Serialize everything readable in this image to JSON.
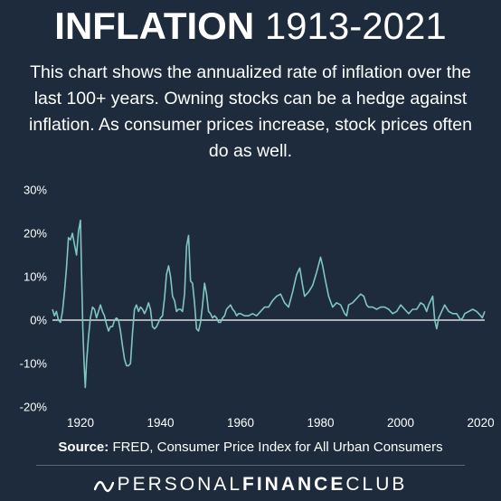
{
  "title": {
    "bold": "INFLATION",
    "light": "1913-2021"
  },
  "subtitle": "This chart shows the annualized rate of inflation over the last 100+ years. Owning stocks can be a hedge against inflation. As consumer prices increase, stock prices often do as well.",
  "source": {
    "label": "Source:",
    "text": "FRED, Consumer Price Index for All Urban Consumers"
  },
  "brand": {
    "part1": "PERSONAL",
    "part2": "FINANCE",
    "part3": "CLUB",
    "icon": "wave-logo-icon"
  },
  "colors": {
    "background": "#1e2b3c",
    "line": "#7fc7bf",
    "zero_line": "#ffffff",
    "text": "#ffffff"
  },
  "chart_data": {
    "type": "line",
    "title": "",
    "xlabel": "",
    "ylabel": "",
    "xlim": [
      1913,
      2021
    ],
    "ylim": [
      -20,
      30
    ],
    "x_ticks": [
      1920,
      1940,
      1960,
      1980,
      2000,
      2020
    ],
    "x_tick_labels": [
      "1920",
      "1940",
      "1960",
      "1980",
      "2000",
      "2020"
    ],
    "y_ticks": [
      30,
      20,
      10,
      0,
      -10,
      -20
    ],
    "y_tick_labels": [
      "30%",
      "20%",
      "10%",
      "0%",
      "-10%",
      "-20%"
    ],
    "grid": false,
    "zero_line": true,
    "series": [
      {
        "x": [
          1913.0,
          1913.5,
          1914.0,
          1914.5,
          1915.0,
          1915.5,
          1916.0,
          1916.5,
          1917.0,
          1917.5,
          1918.0,
          1918.5,
          1919.0,
          1919.5,
          1920.0,
          1920.3,
          1920.6,
          1920.9,
          1921.2,
          1921.5,
          1922.0,
          1922.5,
          1923.0,
          1923.5,
          1924.0,
          1924.5,
          1925.0,
          1925.5,
          1926.0,
          1926.5,
          1927.0,
          1927.5,
          1928.0,
          1928.5,
          1929.0,
          1929.5,
          1930.0,
          1930.5,
          1931.0,
          1931.5,
          1932.0,
          1932.5,
          1933.0,
          1933.5,
          1934.0,
          1934.5,
          1935.0,
          1935.5,
          1936.0,
          1936.5,
          1937.0,
          1937.5,
          1938.0,
          1938.5,
          1939.0,
          1939.5,
          1940.0,
          1940.5,
          1941.0,
          1941.5,
          1942.0,
          1942.5,
          1943.0,
          1943.5,
          1944.0,
          1944.5,
          1945.0,
          1945.5,
          1946.0,
          1946.5,
          1947.0,
          1947.5,
          1948.0,
          1948.5,
          1949.0,
          1949.5,
          1950.0,
          1950.5,
          1951.0,
          1951.5,
          1952.0,
          1952.5,
          1953.0,
          1953.5,
          1954.0,
          1954.5,
          1955.0,
          1955.5,
          1956.0,
          1956.5,
          1957.0,
          1957.5,
          1958.0,
          1958.5,
          1959.0,
          1959.5,
          1960.0,
          1961.0,
          1962.0,
          1963.0,
          1964.0,
          1965.0,
          1966.0,
          1967.0,
          1968.0,
          1969.0,
          1970.0,
          1971.0,
          1972.0,
          1973.0,
          1974.0,
          1974.8,
          1975.5,
          1976.0,
          1977.0,
          1978.0,
          1979.0,
          1980.0,
          1980.5,
          1981.0,
          1982.0,
          1983.0,
          1984.0,
          1985.0,
          1986.0,
          1986.5,
          1987.0,
          1988.0,
          1989.0,
          1990.0,
          1990.8,
          1991.5,
          1992.0,
          1993.0,
          1994.0,
          1995.0,
          1996.0,
          1997.0,
          1998.0,
          1999.0,
          2000.0,
          2001.0,
          2002.0,
          2003.0,
          2004.0,
          2005.0,
          2005.8,
          2006.5,
          2007.0,
          2008.0,
          2008.5,
          2009.0,
          2009.5,
          2010.0,
          2011.0,
          2012.0,
          2013.0,
          2014.0,
          2015.0,
          2015.5,
          2016.0,
          2017.0,
          2018.0,
          2019.0,
          2020.0,
          2020.4,
          2021.0
        ],
        "values": [
          2.5,
          1.0,
          2.0,
          0.0,
          -0.5,
          2.0,
          6.5,
          12.0,
          19.0,
          18.5,
          20.0,
          17.5,
          15.0,
          20.5,
          23.0,
          10.0,
          -2.0,
          -10.0,
          -15.5,
          -10.0,
          -4.0,
          0.5,
          3.0,
          2.5,
          0.5,
          2.0,
          3.5,
          2.0,
          1.0,
          -1.0,
          -2.5,
          -1.5,
          -1.5,
          0.0,
          0.5,
          0.0,
          -2.5,
          -6.0,
          -9.0,
          -10.5,
          -10.5,
          -10.0,
          -3.0,
          2.5,
          3.5,
          2.0,
          3.0,
          2.5,
          1.5,
          2.5,
          4.0,
          2.5,
          -1.5,
          -2.0,
          -1.5,
          -0.5,
          0.5,
          1.0,
          5.0,
          10.5,
          12.5,
          10.0,
          5.5,
          4.5,
          2.0,
          2.5,
          2.5,
          2.0,
          6.0,
          17.0,
          19.5,
          9.0,
          8.5,
          4.0,
          -2.0,
          -2.5,
          -0.5,
          3.5,
          8.5,
          6.0,
          2.0,
          1.5,
          0.5,
          1.0,
          0.5,
          -0.5,
          -0.5,
          0.5,
          1.0,
          2.5,
          3.0,
          3.5,
          2.5,
          2.0,
          1.0,
          1.5,
          1.5,
          1.0,
          1.0,
          1.5,
          1.0,
          2.0,
          3.0,
          3.0,
          4.5,
          5.5,
          6.0,
          4.0,
          3.0,
          6.5,
          10.5,
          12.0,
          8.0,
          5.5,
          6.5,
          8.0,
          11.0,
          14.5,
          12.5,
          10.0,
          5.5,
          3.0,
          4.0,
          3.5,
          1.5,
          1.0,
          3.5,
          4.0,
          5.0,
          6.0,
          5.5,
          3.5,
          3.0,
          3.0,
          2.5,
          3.0,
          3.0,
          2.5,
          1.5,
          2.0,
          3.5,
          2.5,
          1.5,
          2.5,
          2.5,
          4.0,
          3.5,
          2.0,
          3.5,
          5.5,
          0.0,
          -2.0,
          0.5,
          1.5,
          3.5,
          2.0,
          1.5,
          1.5,
          0.0,
          0.5,
          1.5,
          2.0,
          2.5,
          2.0,
          1.0,
          0.5,
          2.0
        ]
      }
    ]
  }
}
